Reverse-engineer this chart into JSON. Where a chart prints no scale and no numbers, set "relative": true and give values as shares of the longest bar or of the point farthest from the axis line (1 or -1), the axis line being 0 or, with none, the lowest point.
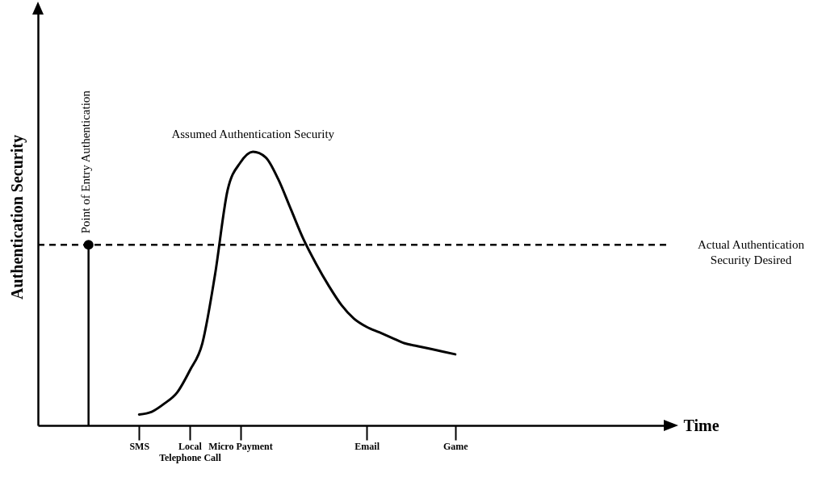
{
  "chart_data": {
    "type": "line",
    "relative": true,
    "xlabel": "Time",
    "ylabel": "Authentication Security",
    "categories": [
      null,
      null,
      null,
      null,
      null,
      null,
      null,
      null,
      "SMS",
      null,
      null,
      null,
      "Local Telephone Call",
      null,
      null,
      null,
      "Micro Payment",
      null,
      null,
      null,
      null,
      null,
      null,
      null,
      null,
      null,
      "Email",
      null,
      null,
      null,
      null,
      null,
      null,
      "Game",
      null,
      null,
      null,
      null,
      null,
      null,
      null,
      null,
      null,
      null,
      null,
      null,
      null,
      null,
      null,
      null,
      null
    ],
    "series": [
      {
        "name": "Assumed Authentication Security",
        "color": "#000000",
        "values": [
          null,
          null,
          null,
          null,
          null,
          null,
          null,
          null,
          0.04,
          0.05,
          0.08,
          0.12,
          0.2,
          0.3,
          0.55,
          0.86,
          0.96,
          1,
          0.98,
          0.9,
          0.79,
          0.68,
          0.59,
          0.51,
          0.44,
          0.39,
          0.36,
          0.34,
          0.32,
          0.3,
          0.29,
          0.28,
          0.27,
          0.26,
          null,
          null,
          null,
          null,
          null,
          null,
          null,
          null,
          null,
          null,
          null,
          null,
          null,
          null,
          null,
          null,
          null
        ]
      },
      {
        "type": "lollipop",
        "name": "Point of Entry Authentication",
        "color": "#000000",
        "values": [
          null,
          null,
          null,
          null,
          0.66,
          null,
          null,
          null,
          null,
          null,
          null,
          null,
          null,
          null,
          null,
          null,
          null,
          null,
          null,
          null,
          null,
          null,
          null,
          null,
          null,
          null,
          null,
          null,
          null,
          null,
          null,
          null,
          null,
          null,
          null,
          null,
          null,
          null,
          null,
          null,
          null,
          null,
          null,
          null,
          null,
          null,
          null,
          null,
          null,
          null,
          null
        ]
      }
    ],
    "ref_lines": [
      {
        "axis": "y",
        "value": 0.66,
        "label": "Actual Authentication Security Desired",
        "line_style": "dashed",
        "color": "#000000"
      }
    ]
  }
}
